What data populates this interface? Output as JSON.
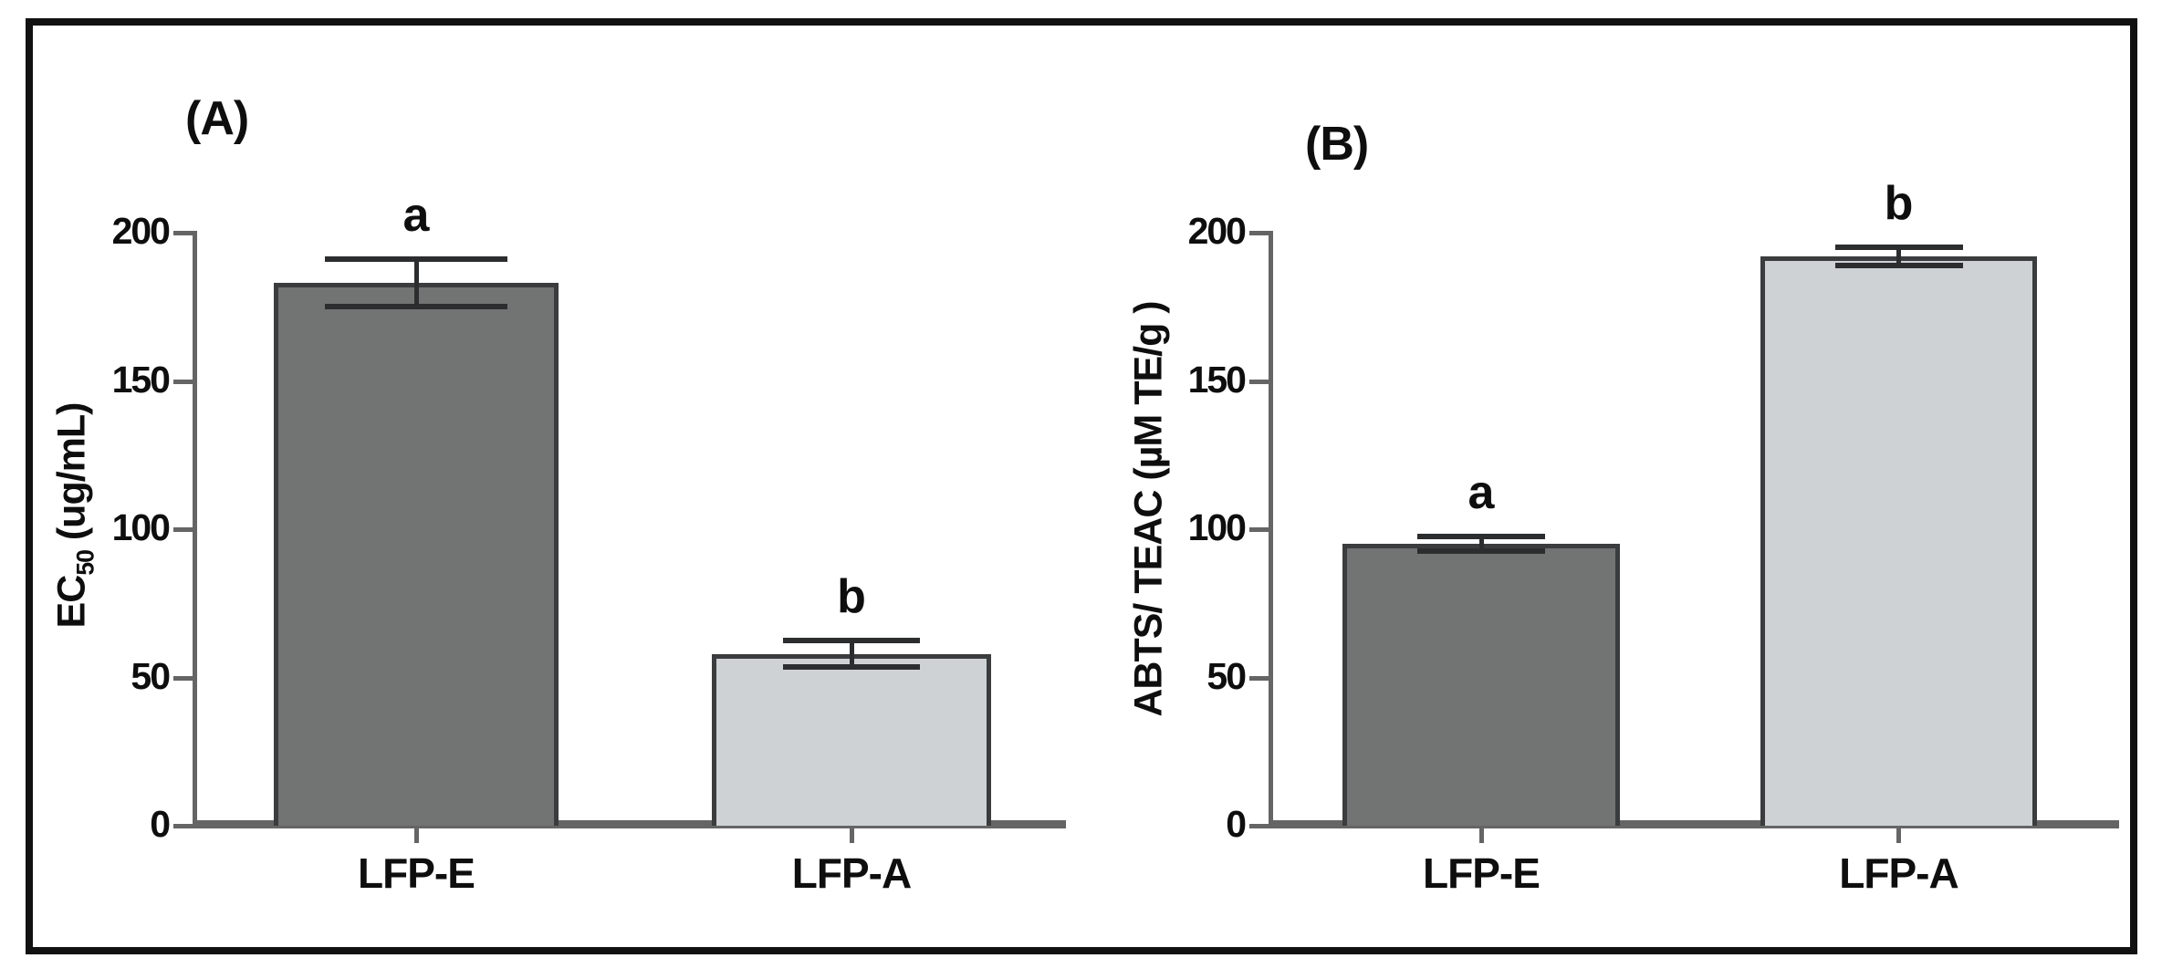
{
  "figure": {
    "background": "#ffffff",
    "border_color": "#111111"
  },
  "chart_data": [
    {
      "type": "bar",
      "panel_tag": "(A)",
      "ylabel_prefix": "EC",
      "ylabel_sub": "50",
      "ylabel_suffix": " (ug/mL)",
      "ylabel_text": "EC50 (ug/mL)",
      "categories": [
        "LFP-E",
        "LFP-A"
      ],
      "values": [
        183,
        58
      ],
      "errors": [
        8,
        4.5
      ],
      "sig_letters": [
        "a",
        "b"
      ],
      "yticks": [
        0,
        50,
        100,
        150,
        200
      ],
      "ylim": [
        0,
        200
      ],
      "grid": "off",
      "legend": "none",
      "bar_colors": [
        "#717473",
        "#ced2d4"
      ],
      "bar_border_color": "#3a3c3d",
      "axis_color": "#656565",
      "error_color": "#2b2d2f",
      "text_color": "#0e0e0e"
    },
    {
      "type": "bar",
      "panel_tag": "(B)",
      "ylabel_prefix": "ABTS/ TEAC (µM TE/g )",
      "ylabel_sub": "",
      "ylabel_suffix": "",
      "ylabel_text": "ABTS/ TEAC (µM TE/g )",
      "categories": [
        "LFP-E",
        "LFP-A"
      ],
      "values": [
        95,
        192
      ],
      "errors": [
        2.5,
        3
      ],
      "sig_letters": [
        "a",
        "b"
      ],
      "yticks": [
        0,
        50,
        100,
        150,
        200
      ],
      "ylim": [
        0,
        200
      ],
      "grid": "off",
      "legend": "none",
      "bar_colors": [
        "#717473",
        "#ced2d4"
      ],
      "bar_border_color": "#3a3c3d",
      "axis_color": "#656565",
      "error_color": "#2b2d2f",
      "text_color": "#0e0e0e"
    }
  ]
}
